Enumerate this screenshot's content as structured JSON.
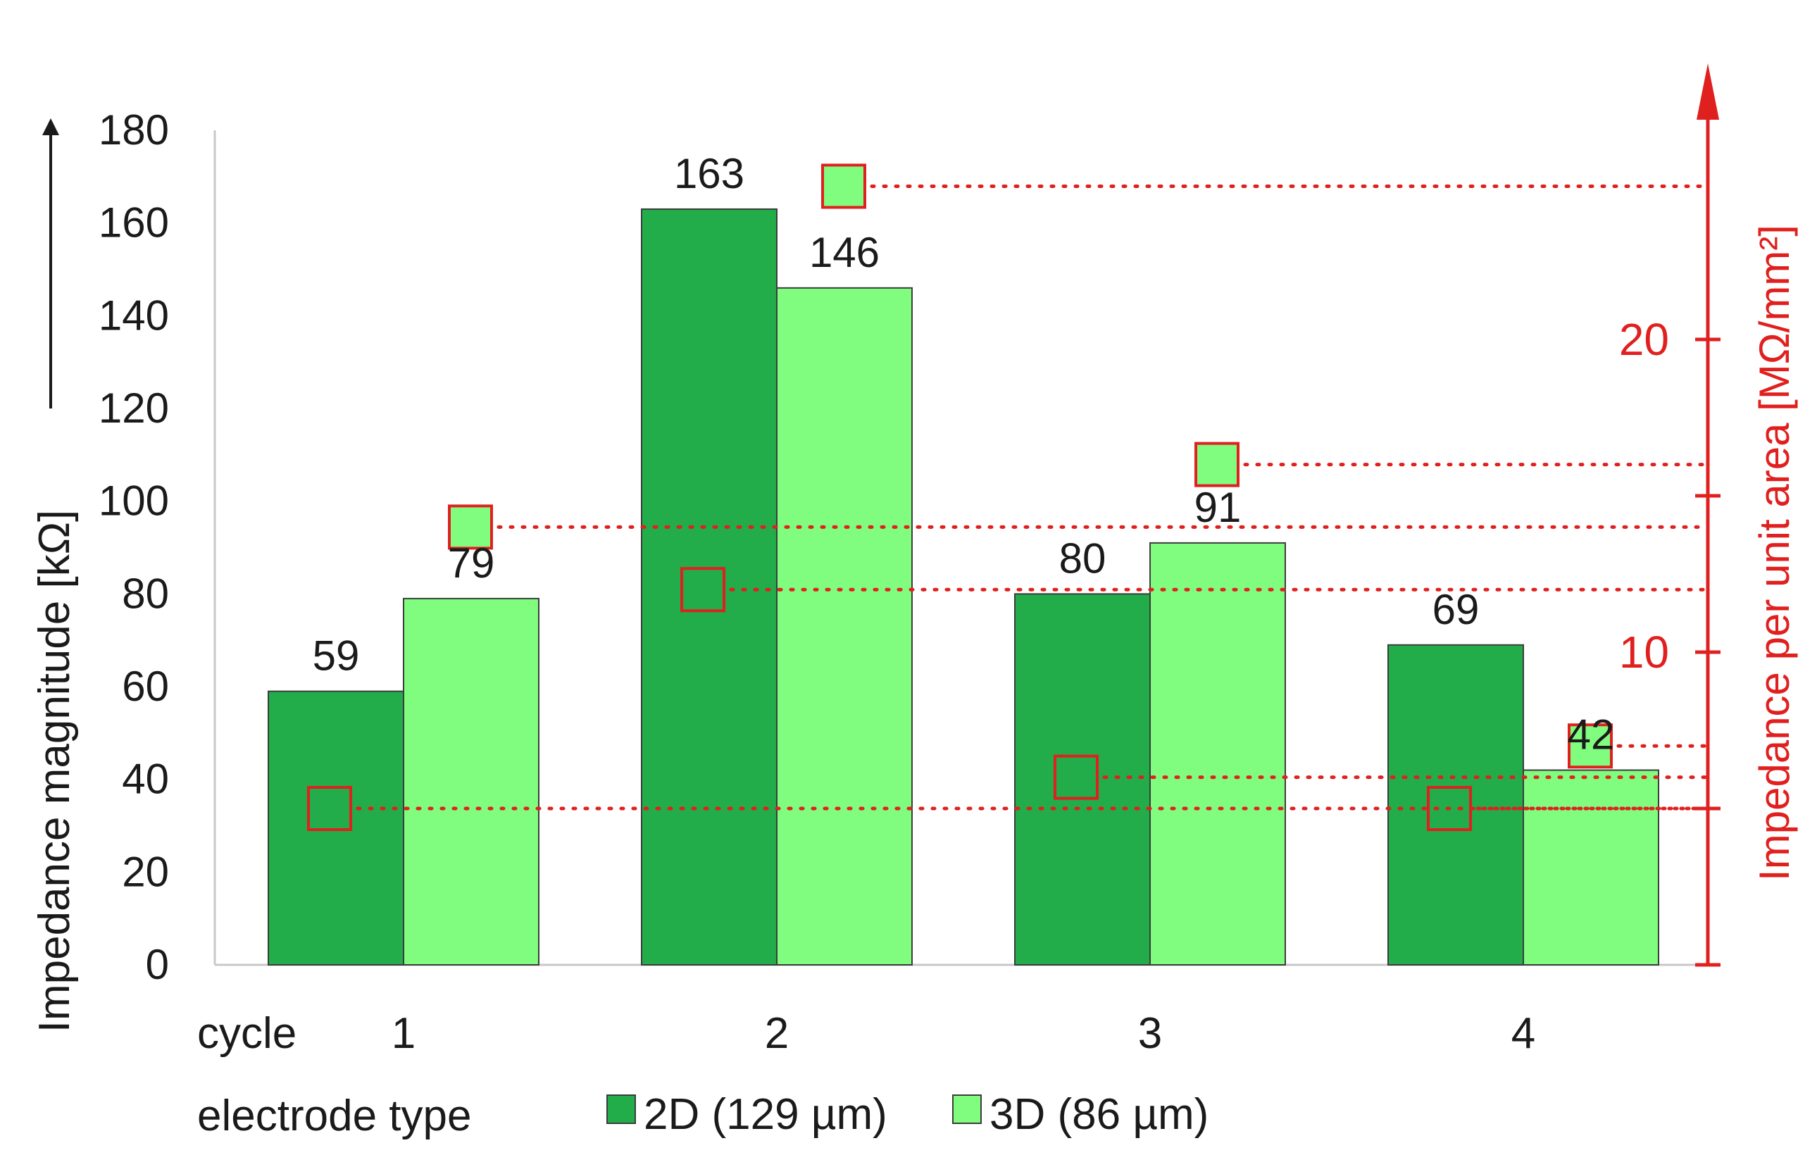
{
  "chart_data": {
    "type": "bar",
    "categories": [
      "1",
      "2",
      "3",
      "4"
    ],
    "category_title": "cycle",
    "legend_title": "electrode type",
    "series": [
      {
        "name": "2D (129 µm)",
        "color": "#22ac4a",
        "values": [
          59,
          163,
          80,
          69
        ]
      },
      {
        "name": "3D (86 µm)",
        "color": "#80fc7e",
        "values": [
          79,
          146,
          91,
          42
        ]
      }
    ],
    "ylabel": "Impedance magnitude [kΩ]",
    "ylim": [
      0,
      180
    ],
    "yticks": [
      "0",
      "20",
      "40",
      "60",
      "80",
      "100",
      "120",
      "140",
      "160",
      "180"
    ],
    "y2label": "Impedance per unit area [MΩ/mm²]",
    "y2lim": [
      0,
      25
    ],
    "y2ticks": [
      0,
      5,
      10,
      15,
      20
    ],
    "y2tick_labels": [
      "",
      "",
      "10",
      "",
      "20"
    ],
    "y2_color": "#e0201e",
    "y2_marker_series": [
      {
        "name": "2D (129 µm)",
        "values": [
          5.0,
          12.0,
          6.0,
          5.0
        ]
      },
      {
        "name": "3D (86 µm)",
        "values": [
          14.0,
          24.9,
          16.0,
          7.0
        ]
      }
    ],
    "grid": false,
    "legend": "bottom"
  }
}
